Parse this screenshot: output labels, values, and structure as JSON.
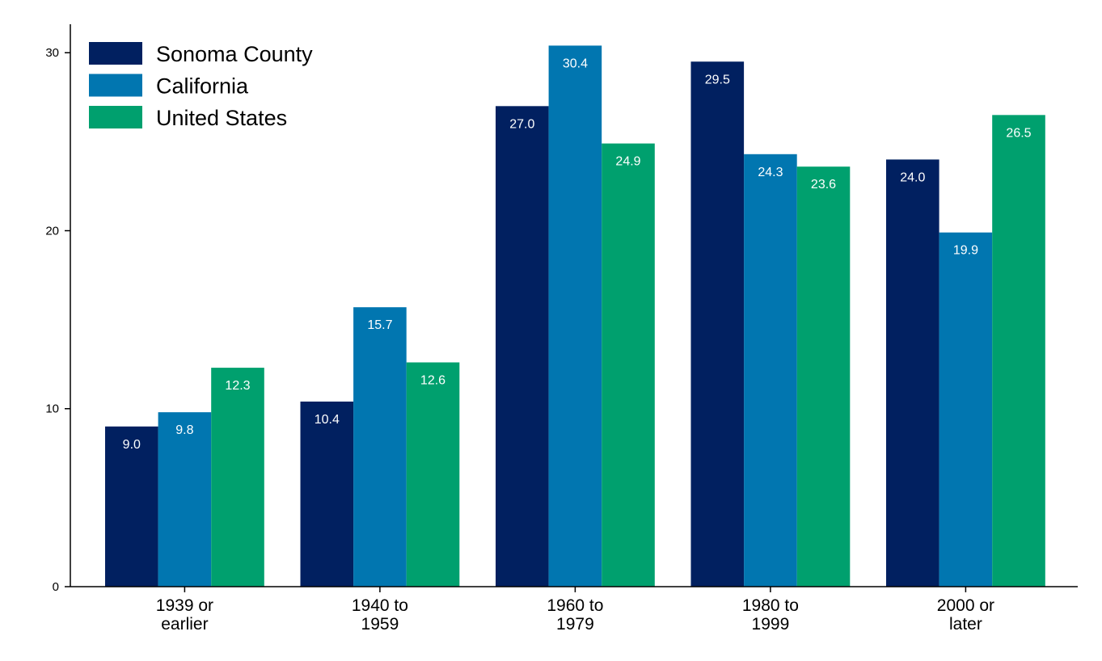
{
  "chart_data": {
    "type": "bar",
    "title": "",
    "xlabel": "",
    "ylabel": "",
    "categories": [
      [
        "1939 or",
        "earlier"
      ],
      [
        "1940 to",
        "1959"
      ],
      [
        "1960 to",
        "1979"
      ],
      [
        "1980 to",
        "1999"
      ],
      [
        "2000 or",
        "later"
      ]
    ],
    "series": [
      {
        "name": "Sonoma County",
        "color": "#012060",
        "values": [
          9.0,
          10.4,
          27.0,
          29.5,
          24.0
        ],
        "labels": [
          "9.0",
          "10.4",
          "27.0",
          "29.5",
          "24.0"
        ]
      },
      {
        "name": "California",
        "color": "#0176b0",
        "values": [
          9.8,
          15.7,
          30.4,
          24.3,
          19.9
        ],
        "labels": [
          "9.8",
          "15.7",
          "30.4",
          "24.3",
          "19.9"
        ]
      },
      {
        "name": "United States",
        "color": "#00a06e",
        "values": [
          12.3,
          12.6,
          24.9,
          23.6,
          26.5
        ],
        "labels": [
          "12.3",
          "12.6",
          "24.9",
          "23.6",
          "26.5"
        ]
      }
    ],
    "ylim": [
      0,
      31.6
    ],
    "yticks": [
      0,
      10,
      20,
      30
    ],
    "ytick_labels": [
      "0",
      "10",
      "20",
      "30"
    ],
    "grid": false,
    "legend_position": "top-left"
  }
}
